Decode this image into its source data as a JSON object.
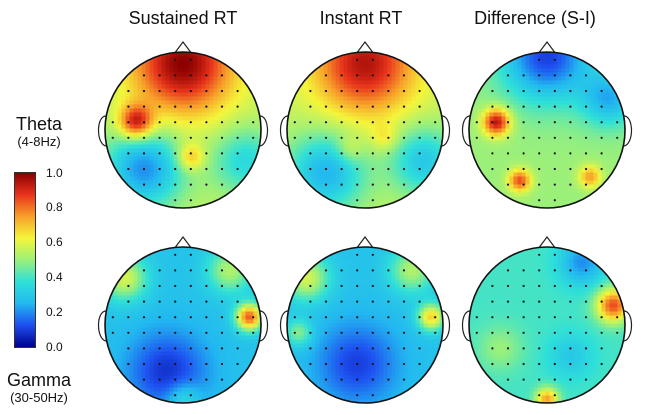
{
  "columns": [
    "Sustained RT",
    "Instant RT",
    "Difference (S-I)"
  ],
  "rows": [
    {
      "band": "Theta",
      "range": "(4-8Hz)"
    },
    {
      "band": "Gamma",
      "range": "(30-50Hz)"
    }
  ],
  "colorbar": {
    "ticks": [
      "1.0",
      "0.8",
      "0.6",
      "0.4",
      "0.2",
      "0.0"
    ],
    "min": 0.0,
    "max": 1.0,
    "colors": [
      "#00008b",
      "#1e4ff0",
      "#22b8f0",
      "#2fe0d8",
      "#9bf07a",
      "#f5f53a",
      "#f7a02a",
      "#e8341c",
      "#8b0000"
    ]
  },
  "maps": [
    {
      "id": "theta-sustained",
      "base": 0.55,
      "blobs": [
        {
          "u": 0,
          "v": -0.85,
          "a": 0.45,
          "s": 0.45
        },
        {
          "u": -0.6,
          "v": -0.1,
          "a": 0.4,
          "s": 0.15
        },
        {
          "u": -0.5,
          "v": 0.5,
          "a": -0.35,
          "s": 0.35
        },
        {
          "u": 0.8,
          "v": 0.4,
          "a": -0.2,
          "s": 0.3
        },
        {
          "u": 0.1,
          "v": 0.35,
          "a": 0.2,
          "s": 0.12
        }
      ]
    },
    {
      "id": "theta-instant",
      "base": 0.55,
      "blobs": [
        {
          "u": 0,
          "v": -0.85,
          "a": 0.4,
          "s": 0.45
        },
        {
          "u": -0.5,
          "v": 0.55,
          "a": -0.3,
          "s": 0.35
        },
        {
          "u": 0.75,
          "v": 0.4,
          "a": -0.25,
          "s": 0.3
        },
        {
          "u": 0.25,
          "v": 0.1,
          "a": 0.1,
          "s": 0.12
        },
        {
          "u": -0.2,
          "v": 0.25,
          "a": 0.1,
          "s": 0.12
        }
      ]
    },
    {
      "id": "theta-difference",
      "base": 0.5,
      "blobs": [
        {
          "u": 0,
          "v": -0.95,
          "a": -0.4,
          "s": 0.4
        },
        {
          "u": -0.65,
          "v": -0.1,
          "a": 0.45,
          "s": 0.12
        },
        {
          "u": -0.35,
          "v": 0.65,
          "a": 0.35,
          "s": 0.1
        },
        {
          "u": 0.55,
          "v": 0.6,
          "a": 0.25,
          "s": 0.1
        },
        {
          "u": 0.8,
          "v": -0.4,
          "a": -0.25,
          "s": 0.25
        }
      ]
    },
    {
      "id": "gamma-sustained",
      "base": 0.28,
      "blobs": [
        {
          "u": 0.85,
          "v": -0.1,
          "a": 0.55,
          "s": 0.12
        },
        {
          "u": -0.75,
          "v": -0.6,
          "a": 0.3,
          "s": 0.2
        },
        {
          "u": 0.6,
          "v": -0.7,
          "a": 0.25,
          "s": 0.2
        },
        {
          "u": -0.2,
          "v": 0.6,
          "a": -0.2,
          "s": 0.35
        },
        {
          "u": 0,
          "v": 0.95,
          "a": 0.15,
          "s": 0.15
        }
      ]
    },
    {
      "id": "gamma-instant",
      "base": 0.28,
      "blobs": [
        {
          "u": 0.85,
          "v": -0.1,
          "a": 0.4,
          "s": 0.12
        },
        {
          "u": -0.75,
          "v": -0.6,
          "a": 0.3,
          "s": 0.2
        },
        {
          "u": 0.6,
          "v": -0.7,
          "a": 0.25,
          "s": 0.2
        },
        {
          "u": -0.1,
          "v": 0.5,
          "a": -0.18,
          "s": 0.35
        },
        {
          "u": -0.85,
          "v": 0.1,
          "a": 0.2,
          "s": 0.12
        }
      ]
    },
    {
      "id": "gamma-difference",
      "base": 0.4,
      "blobs": [
        {
          "u": 0.85,
          "v": -0.25,
          "a": 0.45,
          "s": 0.15
        },
        {
          "u": 0,
          "v": 0.95,
          "a": 0.35,
          "s": 0.1
        },
        {
          "u": 0.45,
          "v": -0.8,
          "a": -0.2,
          "s": 0.2
        },
        {
          "u": -0.6,
          "v": 0.3,
          "a": 0.1,
          "s": 0.2
        },
        {
          "u": 0.3,
          "v": 0.4,
          "a": -0.1,
          "s": 0.2
        }
      ]
    }
  ]
}
